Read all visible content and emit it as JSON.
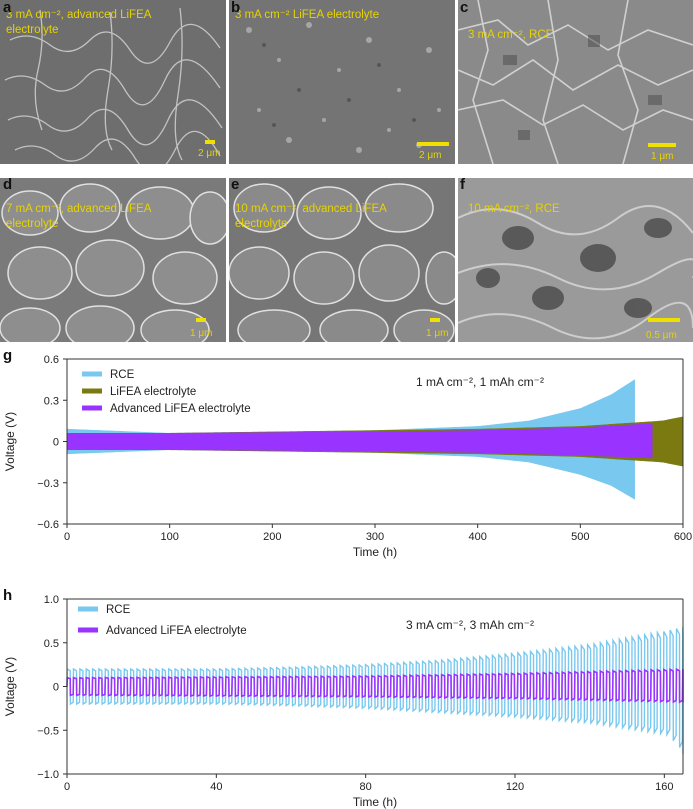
{
  "sem_panels": [
    {
      "letter": "a",
      "caption": "3 mA cm⁻², advanced LiFEA electrolyte",
      "scale": "2 μm",
      "bg": "#6e6e6e"
    },
    {
      "letter": "b",
      "caption": "3 mA cm⁻² LiFEA electrolyte",
      "scale": "2 μm",
      "bg": "#747474"
    },
    {
      "letter": "c",
      "caption": "3 mA cm⁻², RCE",
      "scale": "1 μm",
      "bg": "#8a8a8a"
    },
    {
      "letter": "d",
      "caption": "7 mA cm⁻², advanced LiFEA electrolyte",
      "scale": "1 μm",
      "bg": "#7a7a7a"
    },
    {
      "letter": "e",
      "caption": "10 mA cm⁻², advanced LiFEA electrolyte",
      "scale": "1 μm",
      "bg": "#767676"
    },
    {
      "letter": "f",
      "caption": "10 mA cm⁻², RCE",
      "scale": "0.5 μm",
      "bg": "#9a9a9a"
    }
  ],
  "chart_data": [
    {
      "panel": "g",
      "type": "line",
      "annotation": "1 mA cm⁻², 1 mAh cm⁻²",
      "xlabel": "Time (h)",
      "ylabel": "Voltage (V)",
      "xlim": [
        0,
        600
      ],
      "ylim": [
        -0.6,
        0.6
      ],
      "xticks": [
        "0",
        "100",
        "200",
        "300",
        "400",
        "500",
        "600"
      ],
      "yticks": [
        "0.6",
        "0.3",
        "0",
        "−0.3",
        "−0.6"
      ],
      "legend": "top-left",
      "grid": false,
      "series": [
        {
          "name": "RCE",
          "color": "#79c8f0",
          "x": [
            0,
            100,
            200,
            300,
            400,
            450,
            500,
            530,
            553
          ],
          "upper": [
            0.09,
            0.06,
            0.07,
            0.08,
            0.11,
            0.15,
            0.24,
            0.34,
            0.45
          ],
          "lower": [
            -0.09,
            -0.06,
            -0.07,
            -0.08,
            -0.11,
            -0.15,
            -0.24,
            -0.32,
            -0.42
          ]
        },
        {
          "name": "LiFEA electrolyte",
          "color": "#7a7a10",
          "x": [
            0,
            100,
            200,
            300,
            400,
            500,
            580,
            600
          ],
          "upper": [
            0.06,
            0.06,
            0.07,
            0.08,
            0.09,
            0.11,
            0.15,
            0.18
          ],
          "lower": [
            -0.06,
            -0.06,
            -0.07,
            -0.08,
            -0.09,
            -0.11,
            -0.15,
            -0.18
          ]
        },
        {
          "name": "Advanced LiFEA electrolyte",
          "color": "#9933ff",
          "x": [
            0,
            100,
            200,
            300,
            400,
            500,
            570
          ],
          "upper": [
            0.06,
            0.06,
            0.065,
            0.07,
            0.08,
            0.1,
            0.13
          ],
          "lower": [
            -0.06,
            -0.06,
            -0.065,
            -0.07,
            -0.08,
            -0.1,
            -0.12
          ]
        }
      ]
    },
    {
      "panel": "h",
      "type": "line",
      "annotation": "3 mA cm⁻², 3 mAh cm⁻²",
      "xlabel": "Time (h)",
      "ylabel": "Voltage (V)",
      "xlim": [
        0,
        165
      ],
      "ylim": [
        -1.0,
        1.0
      ],
      "xticks": [
        "0",
        "40",
        "80",
        "120",
        "160"
      ],
      "yticks": [
        "1.0",
        "0.5",
        "0",
        "−0.5",
        "−1.0"
      ],
      "legend": "top-left",
      "grid": false,
      "series": [
        {
          "name": "RCE",
          "color": "#79c8f0",
          "x": [
            0,
            20,
            40,
            60,
            80,
            100,
            120,
            140,
            160,
            165
          ],
          "upper": [
            0.2,
            0.2,
            0.2,
            0.22,
            0.25,
            0.3,
            0.38,
            0.48,
            0.63,
            0.68
          ],
          "lower": [
            -0.2,
            -0.2,
            -0.2,
            -0.22,
            -0.25,
            -0.3,
            -0.35,
            -0.42,
            -0.55,
            -0.78
          ]
        },
        {
          "name": "Advanced LiFEA electrolyte",
          "color": "#9933ff",
          "x": [
            0,
            40,
            80,
            120,
            165
          ],
          "upper": [
            0.1,
            0.11,
            0.12,
            0.15,
            0.2
          ],
          "lower": [
            -0.1,
            -0.11,
            -0.12,
            -0.14,
            -0.18
          ]
        }
      ]
    }
  ]
}
